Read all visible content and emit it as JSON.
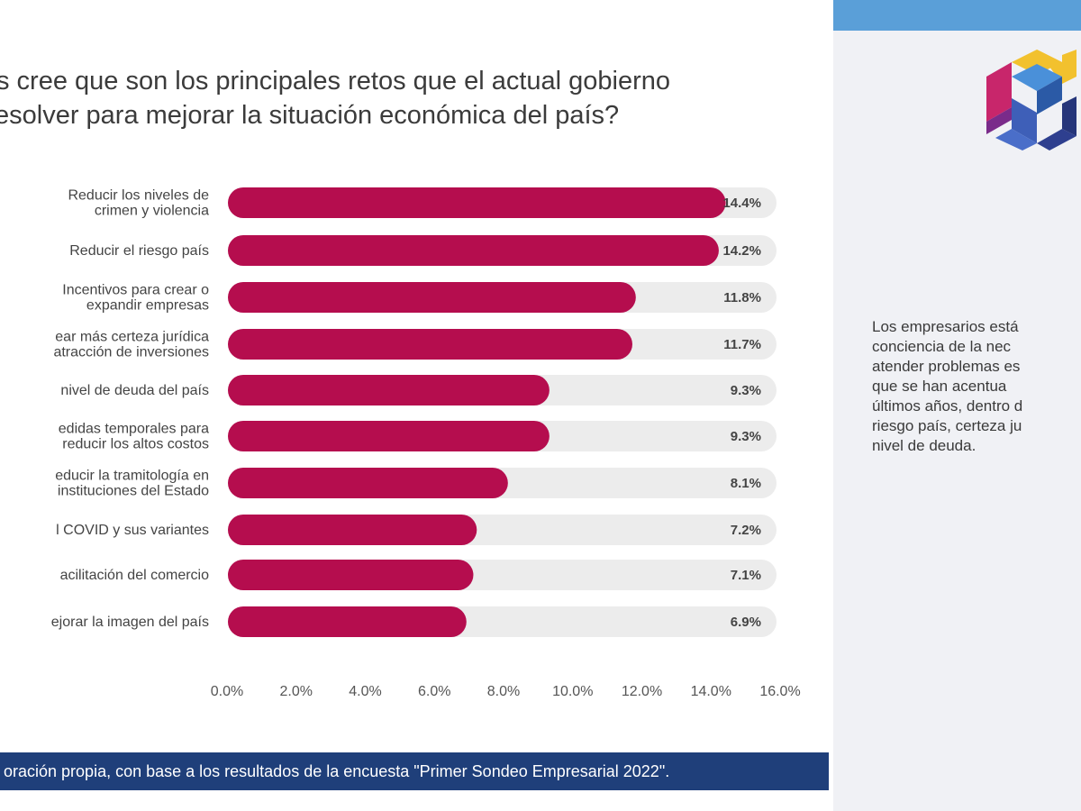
{
  "question": {
    "line1": "s cree que son los principales retos que el actual gobierno",
    "line2": "esolver para mejorar la situación económica del país?"
  },
  "colors": {
    "bar": "#b50d4e",
    "track": "#ececec",
    "source_bg": "#1f3f7a",
    "side_bg": "#f0f1f5",
    "side_top": "#5a9fd8"
  },
  "chart_data": {
    "type": "bar",
    "orientation": "horizontal",
    "categories": [
      [
        "Reducir los niveles de",
        "crimen y violencia"
      ],
      [
        "Reducir el riesgo país"
      ],
      [
        "Incentivos para crear o",
        "expandir empresas"
      ],
      [
        "ear más certeza jurídica",
        "atracción de inversiones"
      ],
      [
        "nivel de deuda del país"
      ],
      [
        "edidas temporales para",
        "reducir los altos costos"
      ],
      [
        "educir la tramitología en",
        "instituciones del Estado"
      ],
      [
        "l COVID y sus variantes"
      ],
      [
        "acilitación del comercio"
      ],
      [
        "ejorar la imagen del país"
      ]
    ],
    "values": [
      14.4,
      14.2,
      11.8,
      11.7,
      9.3,
      9.3,
      8.1,
      7.2,
      7.1,
      6.9
    ],
    "value_labels": [
      "14.4%",
      "14.2%",
      "11.8%",
      "11.7%",
      "9.3%",
      "9.3%",
      "8.1%",
      "7.2%",
      "7.1%",
      "6.9%"
    ],
    "xlim": [
      0,
      16
    ],
    "xticks": [
      "0.0%",
      "2.0%",
      "4.0%",
      "6.0%",
      "8.0%",
      "10.0%",
      "12.0%",
      "14.0%",
      "16.0%"
    ],
    "grid": false
  },
  "source": "oración propia, con base a los resultados de la encuesta \"Primer Sondeo Empresarial 2022\".",
  "sidebar": {
    "text_lines": [
      "Los empresarios está",
      "conciencia de la nec",
      "atender problemas es",
      "que se han acentua",
      "últimos años, dentro d",
      "riesgo país, certeza ju",
      "nivel de deuda."
    ]
  }
}
